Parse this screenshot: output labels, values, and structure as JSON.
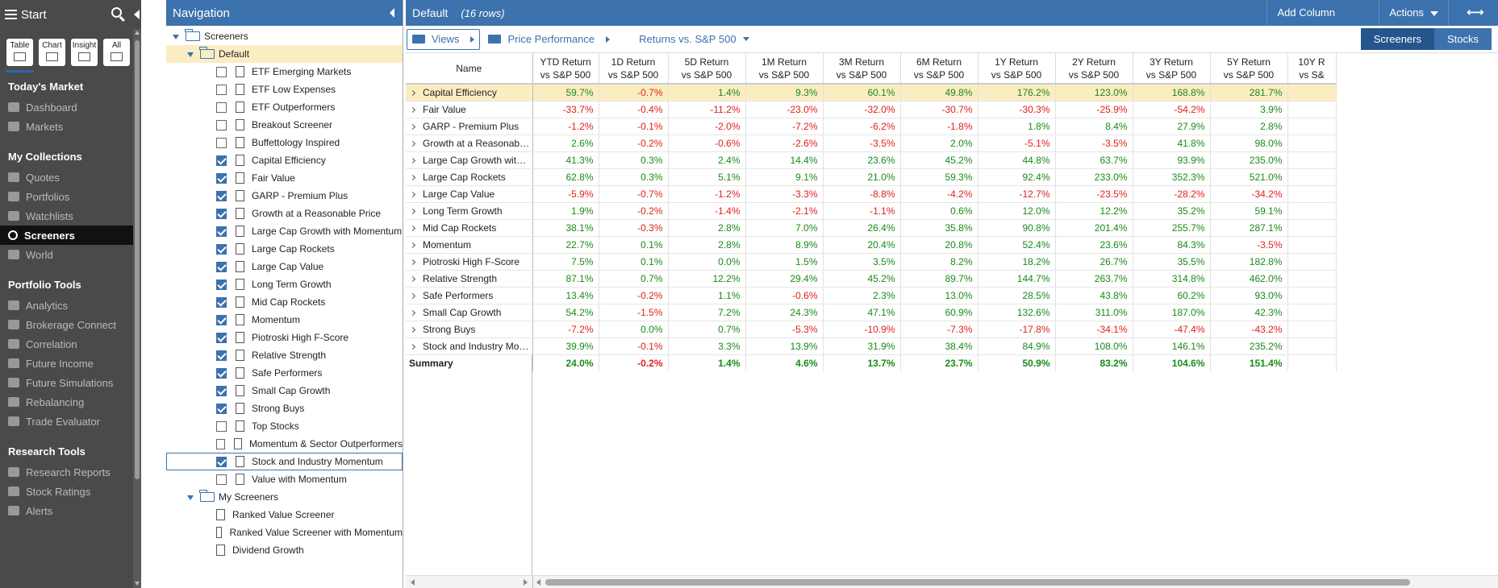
{
  "sidebar": {
    "start_label": "Start",
    "view_modes": [
      {
        "label": "Table",
        "icon": "table-icon"
      },
      {
        "label": "Chart",
        "icon": "chart-icon"
      },
      {
        "label": "Insight",
        "icon": "insight-icon"
      },
      {
        "label": "All",
        "icon": "list-icon"
      }
    ],
    "sections": [
      {
        "title": "Today's Market",
        "items": [
          {
            "label": "Dashboard",
            "icon": "dashboard-icon"
          },
          {
            "label": "Markets",
            "icon": "markets-icon"
          }
        ]
      },
      {
        "title": "My Collections",
        "items": [
          {
            "label": "Quotes",
            "icon": "quotes-icon"
          },
          {
            "label": "Portfolios",
            "icon": "portfolios-icon"
          },
          {
            "label": "Watchlists",
            "icon": "watchlists-icon"
          },
          {
            "label": "Screeners",
            "icon": "search-icon",
            "active": true
          },
          {
            "label": "World",
            "icon": "globe-icon"
          }
        ]
      },
      {
        "title": "Portfolio Tools",
        "items": [
          {
            "label": "Analytics",
            "icon": "analytics-icon"
          },
          {
            "label": "Brokerage Connect",
            "icon": "bank-icon"
          },
          {
            "label": "Correlation",
            "icon": "correlation-icon"
          },
          {
            "label": "Future Income",
            "icon": "dollar-icon"
          },
          {
            "label": "Future Simulations",
            "icon": "flask-icon"
          },
          {
            "label": "Rebalancing",
            "icon": "scale-icon"
          },
          {
            "label": "Trade Evaluator",
            "icon": "briefcase-icon"
          }
        ]
      },
      {
        "title": "Research Tools",
        "items": [
          {
            "label": "Research Reports",
            "icon": "report-icon"
          },
          {
            "label": "Stock Ratings",
            "icon": "star-icon"
          },
          {
            "label": "Alerts",
            "icon": "bell-icon"
          }
        ]
      }
    ]
  },
  "navigation": {
    "title": "Navigation",
    "root": "Screeners",
    "default_folder": "Default",
    "default_items": [
      {
        "label": "ETF Emerging Markets",
        "checked": false
      },
      {
        "label": "ETF Low Expenses",
        "checked": false
      },
      {
        "label": "ETF Outperformers",
        "checked": false
      },
      {
        "label": "Breakout Screener",
        "checked": false
      },
      {
        "label": "Buffettology Inspired",
        "checked": false
      },
      {
        "label": "Capital Efficiency",
        "checked": true
      },
      {
        "label": "Fair Value",
        "checked": true
      },
      {
        "label": "GARP - Premium Plus",
        "checked": true
      },
      {
        "label": "Growth at a Reasonable Price",
        "checked": true
      },
      {
        "label": "Large Cap Growth with Momentum",
        "checked": true
      },
      {
        "label": "Large Cap Rockets",
        "checked": true
      },
      {
        "label": "Large Cap Value",
        "checked": true
      },
      {
        "label": "Long Term Growth",
        "checked": true
      },
      {
        "label": "Mid Cap Rockets",
        "checked": true
      },
      {
        "label": "Momentum",
        "checked": true
      },
      {
        "label": "Piotroski High F-Score",
        "checked": true
      },
      {
        "label": "Relative Strength",
        "checked": true
      },
      {
        "label": "Safe Performers",
        "checked": true
      },
      {
        "label": "Small Cap Growth",
        "checked": true
      },
      {
        "label": "Strong Buys",
        "checked": true
      },
      {
        "label": "Top Stocks",
        "checked": false
      },
      {
        "label": "Momentum & Sector Outperformers",
        "checked": false
      },
      {
        "label": "Stock and Industry Momentum",
        "checked": true,
        "selected": true
      },
      {
        "label": "Value with Momentum",
        "checked": false
      }
    ],
    "my_folder": "My Screeners",
    "my_items": [
      "Ranked Value Screener",
      "Ranked Value Screener with Momentum",
      "Dividend Growth"
    ]
  },
  "main": {
    "title": "Default",
    "row_count": "(16 rows)",
    "add_column": "Add Column",
    "actions": "Actions",
    "toolbar": {
      "views": "Views",
      "crumb1": "Price Performance",
      "crumb2": "Returns vs. S&P 500"
    },
    "segments": [
      "Screeners",
      "Stocks"
    ],
    "columns": [
      {
        "line1": "Name",
        "line2": ""
      },
      {
        "line1": "YTD Return",
        "line2": "vs S&P 500"
      },
      {
        "line1": "1D Return",
        "line2": "vs S&P 500"
      },
      {
        "line1": "5D Return",
        "line2": "vs S&P 500"
      },
      {
        "line1": "1M Return",
        "line2": "vs S&P 500"
      },
      {
        "line1": "3M Return",
        "line2": "vs S&P 500"
      },
      {
        "line1": "6M Return",
        "line2": "vs S&P 500"
      },
      {
        "line1": "1Y Return",
        "line2": "vs S&P 500"
      },
      {
        "line1": "2Y Return",
        "line2": "vs S&P 500"
      },
      {
        "line1": "3Y Return",
        "line2": "vs S&P 500"
      },
      {
        "line1": "5Y Return",
        "line2": "vs S&P 500"
      },
      {
        "line1": "10Y R",
        "line2": "vs S&"
      }
    ],
    "rows": [
      {
        "name": "Capital Efficiency",
        "vals": [
          "59.7%",
          "-0.7%",
          "1.4%",
          "9.3%",
          "60.1%",
          "49.8%",
          "176.2%",
          "123.0%",
          "168.8%",
          "281.7%",
          ""
        ],
        "hl": true
      },
      {
        "name": "Fair Value",
        "vals": [
          "-33.7%",
          "-0.4%",
          "-11.2%",
          "-23.0%",
          "-32.0%",
          "-30.7%",
          "-30.3%",
          "-25.9%",
          "-54.2%",
          "3.9%",
          ""
        ]
      },
      {
        "name": "GARP - Premium Plus",
        "vals": [
          "-1.2%",
          "-0.1%",
          "-2.0%",
          "-7.2%",
          "-6.2%",
          "-1.8%",
          "1.8%",
          "8.4%",
          "27.9%",
          "2.8%",
          ""
        ]
      },
      {
        "name": "Growth at a Reasonable P...",
        "vals": [
          "2.6%",
          "-0.2%",
          "-0.6%",
          "-2.6%",
          "-3.5%",
          "2.0%",
          "-5.1%",
          "-3.5%",
          "41.8%",
          "98.0%",
          ""
        ]
      },
      {
        "name": "Large Cap Growth with Mo...",
        "vals": [
          "41.3%",
          "0.3%",
          "2.4%",
          "14.4%",
          "23.6%",
          "45.2%",
          "44.8%",
          "63.7%",
          "93.9%",
          "235.0%",
          ""
        ]
      },
      {
        "name": "Large Cap Rockets",
        "vals": [
          "62.8%",
          "0.3%",
          "5.1%",
          "9.1%",
          "21.0%",
          "59.3%",
          "92.4%",
          "233.0%",
          "352.3%",
          "521.0%",
          ""
        ]
      },
      {
        "name": "Large Cap Value",
        "vals": [
          "-5.9%",
          "-0.7%",
          "-1.2%",
          "-3.3%",
          "-8.8%",
          "-4.2%",
          "-12.7%",
          "-23.5%",
          "-28.2%",
          "-34.2%",
          ""
        ]
      },
      {
        "name": "Long Term Growth",
        "vals": [
          "1.9%",
          "-0.2%",
          "-1.4%",
          "-2.1%",
          "-1.1%",
          "0.6%",
          "12.0%",
          "12.2%",
          "35.2%",
          "59.1%",
          ""
        ]
      },
      {
        "name": "Mid Cap Rockets",
        "vals": [
          "38.1%",
          "-0.3%",
          "2.8%",
          "7.0%",
          "26.4%",
          "35.8%",
          "90.8%",
          "201.4%",
          "255.7%",
          "287.1%",
          ""
        ]
      },
      {
        "name": "Momentum",
        "vals": [
          "22.7%",
          "0.1%",
          "2.8%",
          "8.9%",
          "20.4%",
          "20.8%",
          "52.4%",
          "23.6%",
          "84.3%",
          "-3.5%",
          ""
        ]
      },
      {
        "name": "Piotroski High F-Score",
        "vals": [
          "7.5%",
          "0.1%",
          "0.0%",
          "1.5%",
          "3.5%",
          "8.2%",
          "18.2%",
          "26.7%",
          "35.5%",
          "182.8%",
          ""
        ]
      },
      {
        "name": "Relative Strength",
        "vals": [
          "87.1%",
          "0.7%",
          "12.2%",
          "29.4%",
          "45.2%",
          "89.7%",
          "144.7%",
          "263.7%",
          "314.8%",
          "462.0%",
          ""
        ]
      },
      {
        "name": "Safe Performers",
        "vals": [
          "13.4%",
          "-0.2%",
          "1.1%",
          "-0.6%",
          "2.3%",
          "13.0%",
          "28.5%",
          "43.8%",
          "60.2%",
          "93.0%",
          ""
        ]
      },
      {
        "name": "Small Cap Growth",
        "vals": [
          "54.2%",
          "-1.5%",
          "7.2%",
          "24.3%",
          "47.1%",
          "60.9%",
          "132.6%",
          "311.0%",
          "187.0%",
          "42.3%",
          ""
        ]
      },
      {
        "name": "Strong Buys",
        "vals": [
          "-7.2%",
          "0.0%",
          "0.7%",
          "-5.3%",
          "-10.9%",
          "-7.3%",
          "-17.8%",
          "-34.1%",
          "-47.4%",
          "-43.2%",
          ""
        ]
      },
      {
        "name": "Stock and Industry Momen...",
        "vals": [
          "39.9%",
          "-0.1%",
          "3.3%",
          "13.9%",
          "31.9%",
          "38.4%",
          "84.9%",
          "108.0%",
          "146.1%",
          "235.2%",
          ""
        ]
      }
    ],
    "summary": {
      "name": "Summary",
      "vals": [
        "24.0%",
        "-0.2%",
        "1.4%",
        "4.6%",
        "13.7%",
        "23.7%",
        "50.9%",
        "83.2%",
        "104.6%",
        "151.4%",
        ""
      ]
    }
  },
  "colors": {
    "accent": "#3c72ad",
    "positive": "#1a8a1a",
    "negative": "#e02020",
    "highlight": "#fbedc2"
  }
}
